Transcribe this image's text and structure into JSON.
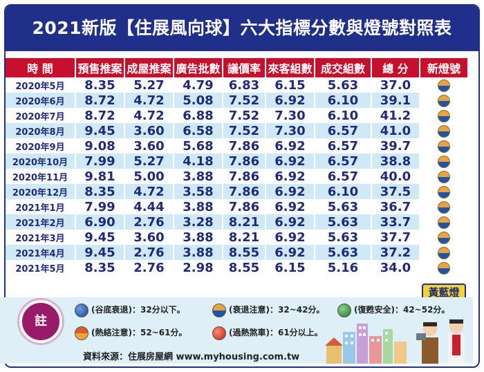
{
  "title": "2021新版【住展風向球】六大指標分數與燈號對照表",
  "table": {
    "headers": [
      "時 間",
      "預售推案",
      "成屋推案",
      "廣告批數",
      "議價率",
      "來客組數",
      "成交組數",
      "總 分",
      "新燈號"
    ],
    "rows": [
      {
        "time": "2020年5月",
        "v1": "8.35",
        "v2": "5.27",
        "v3": "4.79",
        "v4": "6.83",
        "v5": "6.15",
        "v6": "5.63",
        "total": "37.0"
      },
      {
        "time": "2020年6月",
        "v1": "8.72",
        "v2": "4.72",
        "v3": "5.08",
        "v4": "7.52",
        "v5": "6.92",
        "v6": "6.10",
        "total": "39.1"
      },
      {
        "time": "2020年7月",
        "v1": "8.72",
        "v2": "4.72",
        "v3": "6.88",
        "v4": "7.52",
        "v5": "7.30",
        "v6": "6.10",
        "total": "41.2"
      },
      {
        "time": "2020年8月",
        "v1": "9.45",
        "v2": "3.60",
        "v3": "6.58",
        "v4": "7.52",
        "v5": "7.30",
        "v6": "6.57",
        "total": "41.0"
      },
      {
        "time": "2020年9月",
        "v1": "9.08",
        "v2": "3.60",
        "v3": "5.68",
        "v4": "7.86",
        "v5": "6.92",
        "v6": "6.57",
        "total": "39.7"
      },
      {
        "time": "2020年10月",
        "v1": "7.99",
        "v2": "5.27",
        "v3": "4.18",
        "v4": "7.86",
        "v5": "6.92",
        "v6": "6.57",
        "total": "38.8"
      },
      {
        "time": "2020年11月",
        "v1": "9.81",
        "v2": "5.00",
        "v3": "3.88",
        "v4": "7.86",
        "v5": "6.92",
        "v6": "6.57",
        "total": "40.0"
      },
      {
        "time": "2020年12月",
        "v1": "8.35",
        "v2": "4.72",
        "v3": "3.58",
        "v4": "7.86",
        "v5": "6.92",
        "v6": "6.10",
        "total": "37.5"
      },
      {
        "time": "2021年1月",
        "v1": "7.99",
        "v2": "4.44",
        "v3": "3.88",
        "v4": "7.86",
        "v5": "6.92",
        "v6": "5.63",
        "total": "36.7"
      },
      {
        "time": "2021年2月",
        "v1": "6.90",
        "v2": "2.76",
        "v3": "3.28",
        "v4": "8.21",
        "v5": "6.92",
        "v6": "5.63",
        "total": "33.7"
      },
      {
        "time": "2021年3月",
        "v1": "9.45",
        "v2": "3.60",
        "v3": "3.88",
        "v4": "8.21",
        "v5": "6.92",
        "v6": "5.63",
        "total": "37.7"
      },
      {
        "time": "2021年4月",
        "v1": "9.45",
        "v2": "2.76",
        "v3": "3.88",
        "v4": "8.55",
        "v5": "6.92",
        "v6": "5.63",
        "total": "37.2"
      },
      {
        "time": "2021年5月",
        "v1": "8.35",
        "v2": "2.76",
        "v3": "2.98",
        "v4": "8.55",
        "v5": "6.15",
        "v6": "5.16",
        "total": "34.0"
      }
    ],
    "current_lamp_label": "黃藍燈"
  },
  "legend": {
    "note_label": "註",
    "items": [
      {
        "icon": "blue-light",
        "text": "(谷底衰退)：32分以下。"
      },
      {
        "icon": "yellow-blue-light",
        "text": "(衰退注意)：32~42分。"
      },
      {
        "icon": "green-light",
        "text": "(復甦安全)：42~52分。"
      },
      {
        "icon": "red-yellow-light",
        "text": "(熱絡注意)：52~61分。"
      },
      {
        "icon": "red-light",
        "text": "(過熱煞車)：61分以上。"
      }
    ],
    "source": "資料來源：住展房屋網 www.myhousing.com.tw"
  },
  "colors": {
    "header_bg": "#1f2f8a",
    "column_header_bg": "#c8102e",
    "stripe": "#cfe9f6",
    "text": "#1f2a7a"
  }
}
